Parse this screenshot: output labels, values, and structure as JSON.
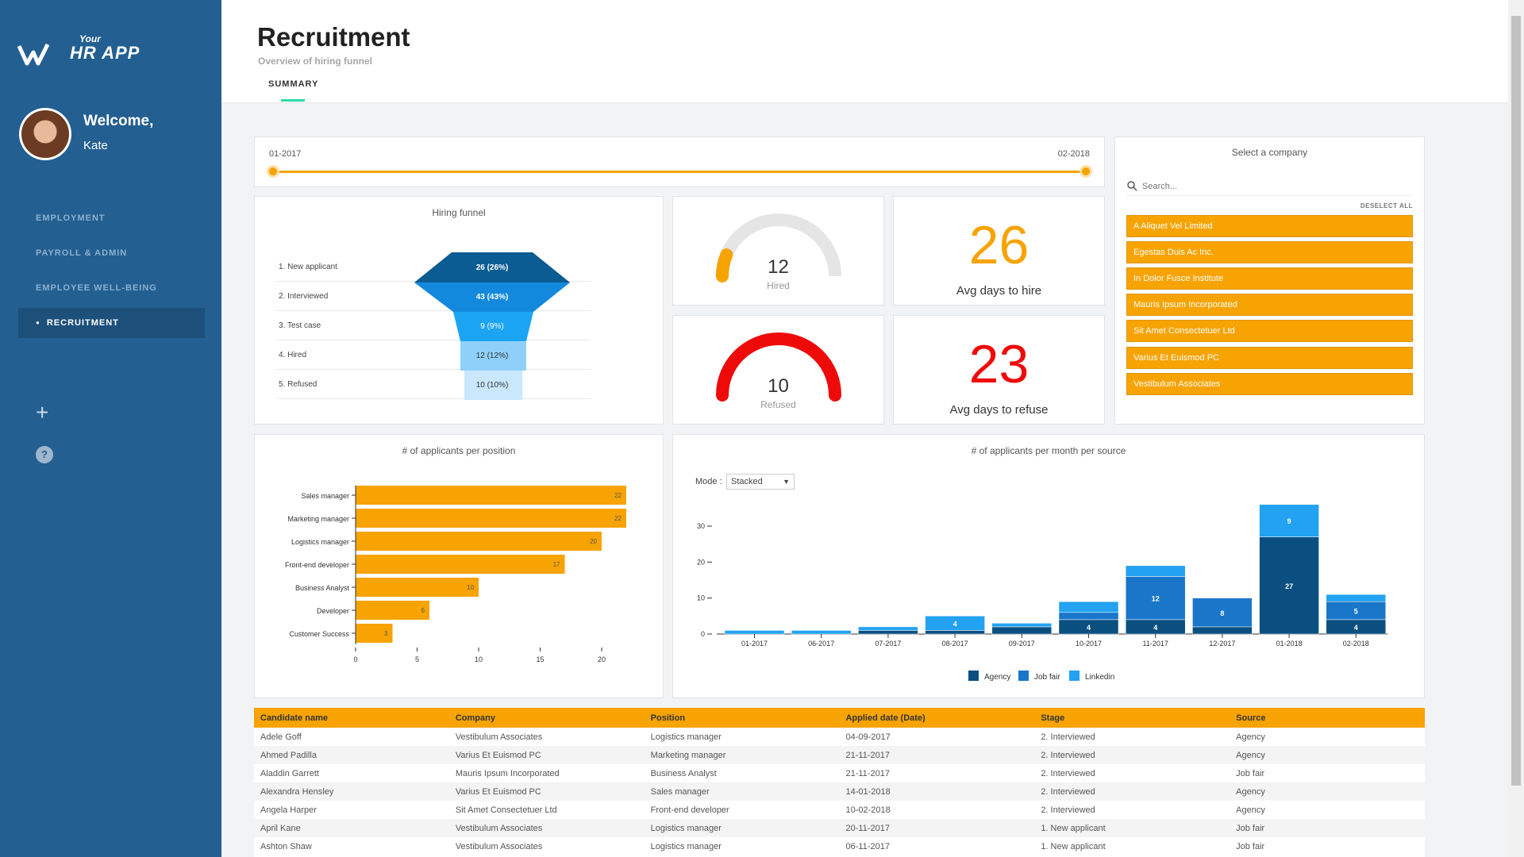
{
  "app": {
    "logo_small": "Your",
    "logo_main": "HR APP"
  },
  "user": {
    "welcome": "Welcome,",
    "name": "Kate"
  },
  "nav": {
    "items": [
      {
        "label": "EMPLOYMENT"
      },
      {
        "label": "PAYROLL & ADMIN"
      },
      {
        "label": "EMPLOYEE WELL-BEING"
      },
      {
        "label": "RECRUITMENT",
        "active": true
      }
    ]
  },
  "header": {
    "title": "Recruitment",
    "subtitle": "Overview of hiring funnel",
    "tab": "SUMMARY"
  },
  "slider": {
    "start": "01-2017",
    "end": "02-2018"
  },
  "funnel": {
    "title": "Hiring funnel",
    "stages": [
      {
        "label": "1. New applicant",
        "value": "26 (26%)"
      },
      {
        "label": "2. Interviewed",
        "value": "43 (43%)"
      },
      {
        "label": "3. Test case",
        "value": "9 (9%)"
      },
      {
        "label": "4. Hired",
        "value": "12 (12%)"
      },
      {
        "label": "5. Refused",
        "value": "10 (10%)"
      }
    ]
  },
  "kpis": {
    "hired": {
      "value": "12",
      "label": "Hired"
    },
    "refused": {
      "value": "10",
      "label": "Refused"
    },
    "avg_hire": {
      "value": "26",
      "label": "Avg days to hire"
    },
    "avg_refuse": {
      "value": "23",
      "label": "Avg days to refuse"
    }
  },
  "company_filter": {
    "title": "Select a company",
    "search_placeholder": "Search...",
    "deselect": "DESELECT ALL",
    "companies": [
      "A Aliquet Vel Limited",
      "Egestas Duis Ac Inc.",
      "In Dolor Fusce Institute",
      "Mauris Ipsum Incorporated",
      "Sit Amet Consectetuer Ltd",
      "Varius Et Euismod PC",
      "Vestibulum Associates"
    ]
  },
  "mode": {
    "label": "Mode :",
    "value": "Stacked"
  },
  "colors": {
    "orange": "#f7a301",
    "agency": "#0a4f80",
    "jobfair": "#1976c9",
    "linkedin": "#22a2f0",
    "gauge_hired": "#f7a301",
    "gauge_refused": "#ef0a0a"
  },
  "chart_data": [
    {
      "type": "bar",
      "orientation": "horizontal",
      "title": "# of applicants per position",
      "categories": [
        "Sales manager",
        "Marketing manager",
        "Logistics manager",
        "Front-end developer",
        "Business Analyst",
        "Developer",
        "Customer Success"
      ],
      "values": [
        22,
        22,
        20,
        17,
        10,
        6,
        3
      ],
      "xticks": [
        0,
        5,
        10,
        15,
        20
      ],
      "xlim": [
        0,
        22
      ]
    },
    {
      "type": "bar",
      "stacked": true,
      "title": "# of applicants per month per source",
      "categories": [
        "01-2017",
        "06-2017",
        "07-2017",
        "08-2017",
        "09-2017",
        "10-2017",
        "11-2017",
        "12-2017",
        "01-2018",
        "02-2018"
      ],
      "series": [
        {
          "name": "Agency",
          "values": [
            0,
            0,
            1,
            1,
            2,
            4,
            4,
            2,
            27,
            4
          ]
        },
        {
          "name": "Job fair",
          "values": [
            0,
            0,
            0,
            0,
            0,
            2,
            12,
            8,
            0,
            5
          ]
        },
        {
          "name": "Linkedin",
          "values": [
            1,
            1,
            1,
            4,
            1,
            3,
            3,
            0,
            9,
            2
          ]
        }
      ],
      "segment_labels": [
        [
          "",
          "",
          "",
          "",
          ""
        ],
        [
          "",
          "",
          "",
          "",
          ""
        ],
        [
          "",
          "",
          "",
          "",
          ""
        ],
        [
          "",
          "",
          "4",
          "",
          ""
        ],
        [
          "",
          "",
          "",
          "",
          ""
        ],
        [
          "4",
          "",
          "",
          "",
          ""
        ],
        [
          "4",
          "12",
          "",
          "",
          ""
        ],
        [
          "",
          "8",
          "",
          "",
          ""
        ],
        [
          "27",
          "",
          "9",
          "",
          ""
        ],
        [
          "4",
          "5",
          "",
          "",
          ""
        ]
      ],
      "yticks": [
        0,
        10,
        20,
        30
      ],
      "ylim": [
        0,
        40
      ]
    }
  ],
  "table": {
    "columns": [
      "Candidate name",
      "Company",
      "Position",
      "Applied date (Date)",
      "Stage",
      "Source"
    ],
    "rows": [
      [
        "Adele Goff",
        "Vestibulum Associates",
        "Logistics manager",
        "04-09-2017",
        "2. Interviewed",
        "Agency"
      ],
      [
        "Ahmed Padilla",
        "Varius Et Euismod PC",
        "Marketing manager",
        "21-11-2017",
        "2. Interviewed",
        "Agency"
      ],
      [
        "Aladdin Garrett",
        "Mauris Ipsum Incorporated",
        "Business Analyst",
        "21-11-2017",
        "2. Interviewed",
        "Job fair"
      ],
      [
        "Alexandra Hensley",
        "Varius Et Euismod PC",
        "Sales manager",
        "14-01-2018",
        "2. Interviewed",
        "Agency"
      ],
      [
        "Angela Harper",
        "Sit Amet Consectetuer Ltd",
        "Front-end developer",
        "10-02-2018",
        "2. Interviewed",
        "Agency"
      ],
      [
        "April Kane",
        "Vestibulum Associates",
        "Logistics manager",
        "20-11-2017",
        "1. New applicant",
        "Job fair"
      ],
      [
        "Ashton Shaw",
        "Vestibulum Associates",
        "Logistics manager",
        "06-11-2017",
        "1. New applicant",
        "Job fair"
      ]
    ]
  }
}
